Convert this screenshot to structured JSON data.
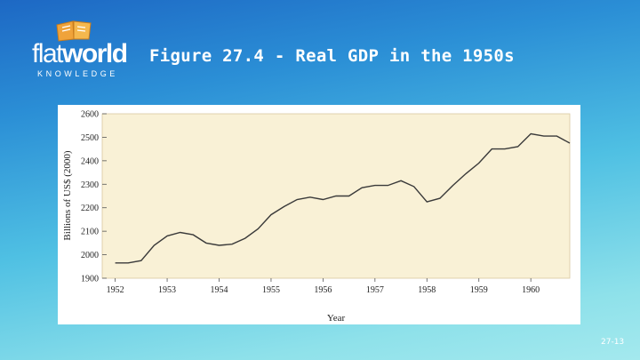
{
  "logo": {
    "word_flat": "flat",
    "word_world": "world",
    "tagline": "KNOWLEDGE"
  },
  "slide": {
    "title": "Figure 27.4 - Real GDP in the 1950s",
    "page_number": "27-13"
  },
  "colors": {
    "plot_background": "#f9f1d6",
    "line": "#3a3a3a",
    "logo_book": "#f0a33a"
  },
  "chart_data": {
    "type": "line",
    "title": "",
    "xlabel": "Year",
    "ylabel": "Billions of US$ (2000)",
    "xlim": [
      1951.75,
      1960.75
    ],
    "ylim": [
      1900,
      2600
    ],
    "x_ticks": [
      1952,
      1953,
      1954,
      1955,
      1956,
      1957,
      1958,
      1959,
      1960
    ],
    "x_tick_labels": [
      "1952",
      "1953",
      "1954",
      "1955",
      "1956",
      "1957",
      "1958",
      "1959",
      "1960"
    ],
    "y_ticks": [
      1900,
      2000,
      2100,
      2200,
      2300,
      2400,
      2500,
      2600
    ],
    "y_tick_labels": [
      "1900",
      "2000",
      "2100",
      "2200",
      "2300",
      "2400",
      "2500",
      "2600"
    ],
    "grid": false,
    "series": [
      {
        "x": [
          1952.0,
          1952.25,
          1952.5,
          1952.75,
          1953.0,
          1953.25,
          1953.5,
          1953.75,
          1954.0,
          1954.25,
          1954.5,
          1954.75,
          1955.0,
          1955.25,
          1955.5,
          1955.75,
          1956.0,
          1956.25,
          1956.5,
          1956.75,
          1957.0,
          1957.25,
          1957.5,
          1957.75,
          1958.0,
          1958.25,
          1958.5,
          1958.75,
          1959.0,
          1959.25,
          1959.5,
          1959.75,
          1960.0,
          1960.25,
          1960.5,
          1960.75
        ],
        "values": [
          1965,
          1965,
          1975,
          2040,
          2080,
          2095,
          2085,
          2050,
          2040,
          2045,
          2070,
          2110,
          2170,
          2205,
          2235,
          2245,
          2235,
          2250,
          2250,
          2285,
          2295,
          2295,
          2315,
          2290,
          2225,
          2240,
          2295,
          2345,
          2390,
          2450,
          2450,
          2460,
          2515,
          2505,
          2505,
          2475
        ]
      }
    ]
  }
}
